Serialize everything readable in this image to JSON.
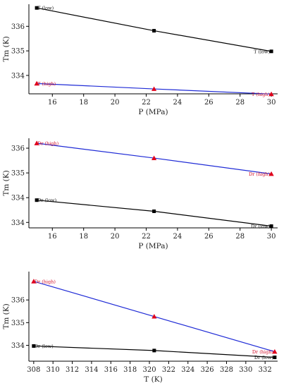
{
  "colors": {
    "black_series": "#000000",
    "blue_series": "#1f2bd6",
    "red_marker": "#e0001b",
    "red_label": "#d0102a"
  },
  "chart_data": [
    {
      "type": "line",
      "xlabel": "P (MPa)",
      "ylabel": "Tm (K)",
      "xlim": [
        14.5,
        30.4
      ],
      "ylim": [
        333.25,
        336.9
      ],
      "xticks": [
        16,
        18,
        20,
        22,
        24,
        26,
        28,
        30
      ],
      "yticks": [
        334,
        335,
        336
      ],
      "ytick_labels": [
        "334",
        "335",
        "336"
      ],
      "series": [
        {
          "name": "",
          "color": "#000000",
          "marker": "square",
          "x": [
            15,
            22.5,
            30
          ],
          "y": [
            336.75,
            335.82,
            334.98
          ],
          "labels": [
            {
              "text": "T (low)",
              "i": 0,
              "pos": "right"
            },
            {
              "text": "T (low)",
              "i": 2,
              "pos": "left"
            }
          ]
        },
        {
          "name": "",
          "color": "#1f2bd6",
          "marker": "triangle",
          "markerColor": "#e0001b",
          "x": [
            15,
            22.5,
            30
          ],
          "y": [
            333.67,
            333.45,
            333.24
          ],
          "labels": [
            {
              "text": "T (high)",
              "i": 0,
              "pos": "right"
            },
            {
              "text": "T (high)",
              "i": 2,
              "pos": "left"
            }
          ]
        }
      ]
    },
    {
      "type": "line",
      "xlabel": "P (MPa)",
      "ylabel": "Tm (K)",
      "xlim": [
        14.5,
        30.4
      ],
      "ylim": [
        333.28,
        336.9
      ],
      "xticks": [
        16,
        18,
        20,
        22,
        24,
        26,
        28,
        30
      ],
      "yticks": [
        333.5,
        334.5,
        335.5,
        336.5
      ],
      "ytick_labels": [
        "334",
        "334",
        "335",
        "336"
      ],
      "series": [
        {
          "name": "",
          "color": "#1f2bd6",
          "marker": "triangle",
          "markerColor": "#e0001b",
          "x": [
            15,
            22.5,
            30
          ],
          "y": [
            336.7,
            336.1,
            335.46
          ],
          "labels": [
            {
              "text": "Dr (high)",
              "i": 0,
              "pos": "right"
            },
            {
              "text": "Dr (high)",
              "i": 2,
              "pos": "left"
            }
          ]
        },
        {
          "name": "",
          "color": "#000000",
          "marker": "square",
          "x": [
            15,
            22.5,
            30
          ],
          "y": [
            334.4,
            333.95,
            333.35
          ],
          "labels": [
            {
              "text": "Dr (low)",
              "i": 0,
              "pos": "right"
            },
            {
              "text": "Dr (low)",
              "i": 2,
              "pos": "left"
            }
          ]
        }
      ]
    },
    {
      "type": "line",
      "xlabel": "T (K)",
      "ylabel": "Tm (K)",
      "xlim": [
        307.5,
        333.3
      ],
      "ylim": [
        333.3,
        337.25
      ],
      "xticks": [
        308,
        310,
        312,
        314,
        316,
        318,
        320,
        322,
        324,
        326,
        328,
        330,
        332
      ],
      "yticks": [
        334,
        335,
        336
      ],
      "ytick_labels": [
        "334",
        "335",
        "336"
      ],
      "series": [
        {
          "name": "",
          "color": "#1f2bd6",
          "marker": "triangle",
          "markerColor": "#e0001b",
          "x": [
            308,
            320.5,
            333
          ],
          "y": [
            336.82,
            335.27,
            333.72
          ],
          "labels": [
            {
              "text": "Dr (high)",
              "i": 0,
              "pos": "right"
            },
            {
              "text": "Dr (high)",
              "i": 2,
              "pos": "left"
            }
          ]
        },
        {
          "name": "",
          "color": "#000000",
          "marker": "square",
          "x": [
            308,
            320.5,
            333
          ],
          "y": [
            333.97,
            333.77,
            333.47
          ],
          "labels": [
            {
              "text": "Dr (low)",
              "i": 0,
              "pos": "right"
            },
            {
              "text": "Dr (low)",
              "i": 2,
              "pos": "left"
            }
          ]
        }
      ]
    }
  ]
}
